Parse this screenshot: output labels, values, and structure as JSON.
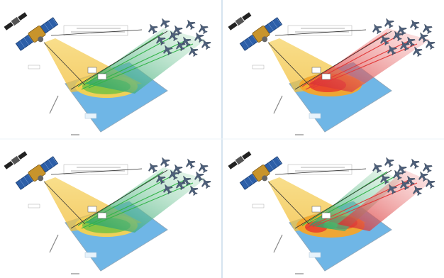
{
  "colors": {
    "ground": "#6fb6e6",
    "ground_edge": "#8fa9bd",
    "beam_yellow": "#f2c14e",
    "footprint_yellow": "#f5d251",
    "footprint_green": "#7cc242",
    "footprint_orange": "#f4a52a",
    "footprint_red": "#e8432c",
    "link_green": "#35b44a",
    "link_red": "#e23a3a",
    "divider": "#cfe0ee"
  },
  "panels": [
    {
      "name": "top-left",
      "beam": "green",
      "beams": 1
    },
    {
      "name": "top-right",
      "beam": "red",
      "beams": 1
    },
    {
      "name": "bottom-left",
      "beam": "green",
      "beams": 1
    },
    {
      "name": "bottom-right",
      "beam": "mixed",
      "beams": 2
    }
  ]
}
